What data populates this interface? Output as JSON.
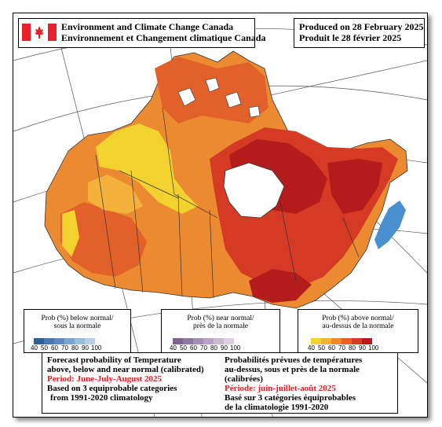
{
  "header": {
    "agency_en": "Environment and Climate Change Canada",
    "agency_fr": "Environnement et Changement climatique Canada",
    "produced_en": "Produced on 28 February 2025",
    "produced_fr": "Produit le 28 février 2025"
  },
  "legends": [
    {
      "title_en": "Prob (%) below normal/",
      "title_fr": "sous la normale",
      "ticks": [
        "40",
        "50",
        "60",
        "70",
        "80",
        "90",
        "100"
      ],
      "colors": [
        "#2e5f9c",
        "#4a77b1",
        "#5d8ac0",
        "#7ba3cf",
        "#9bbcde",
        "#b7cee8"
      ]
    },
    {
      "title_en": "Prob (%) near normal/",
      "title_fr": "près de la normale",
      "ticks": [
        "40",
        "50",
        "60",
        "70",
        "80",
        "90",
        "100"
      ],
      "colors": [
        "#7a648e",
        "#8f77a3",
        "#a38db5",
        "#b8a3c6",
        "#cab8d4",
        "#ddd0e3"
      ]
    },
    {
      "title_en": "Prob (%) above normal/",
      "title_fr": "au-dessus de la normale",
      "ticks": [
        "40",
        "50",
        "60",
        "70",
        "80",
        "90",
        "100"
      ],
      "colors": [
        "#f2d22e",
        "#f4b13c",
        "#ec8a32",
        "#e2602a",
        "#d43a24",
        "#b41c1c"
      ]
    }
  ],
  "info": {
    "en": {
      "line1": "Forecast probability of Temperature",
      "line2": "above, below and near normal (calibrated)",
      "period": "Period: June-July-August 2025",
      "line4": "Based on 3 equiprobable categories",
      "line5": "from 1991-2020 climatology"
    },
    "fr": {
      "line1": "Probabilités prévues de températures",
      "line2": "au-dessus, sous et près de la normale (calibrées)",
      "period": "Période: juin-juillet-août 2025",
      "line4": "Basé sur 3 catégories équiprobables",
      "line5": "de la climatologie 1991-2020"
    }
  },
  "colors": {
    "flag_red": "#e8202a",
    "period_red": "#e02020",
    "map_yellow": "#f2d22e",
    "map_orange": "#ec8a32",
    "map_red": "#d43a24",
    "map_darkred": "#b41c1c",
    "map_blue": "#4a8fd0"
  }
}
